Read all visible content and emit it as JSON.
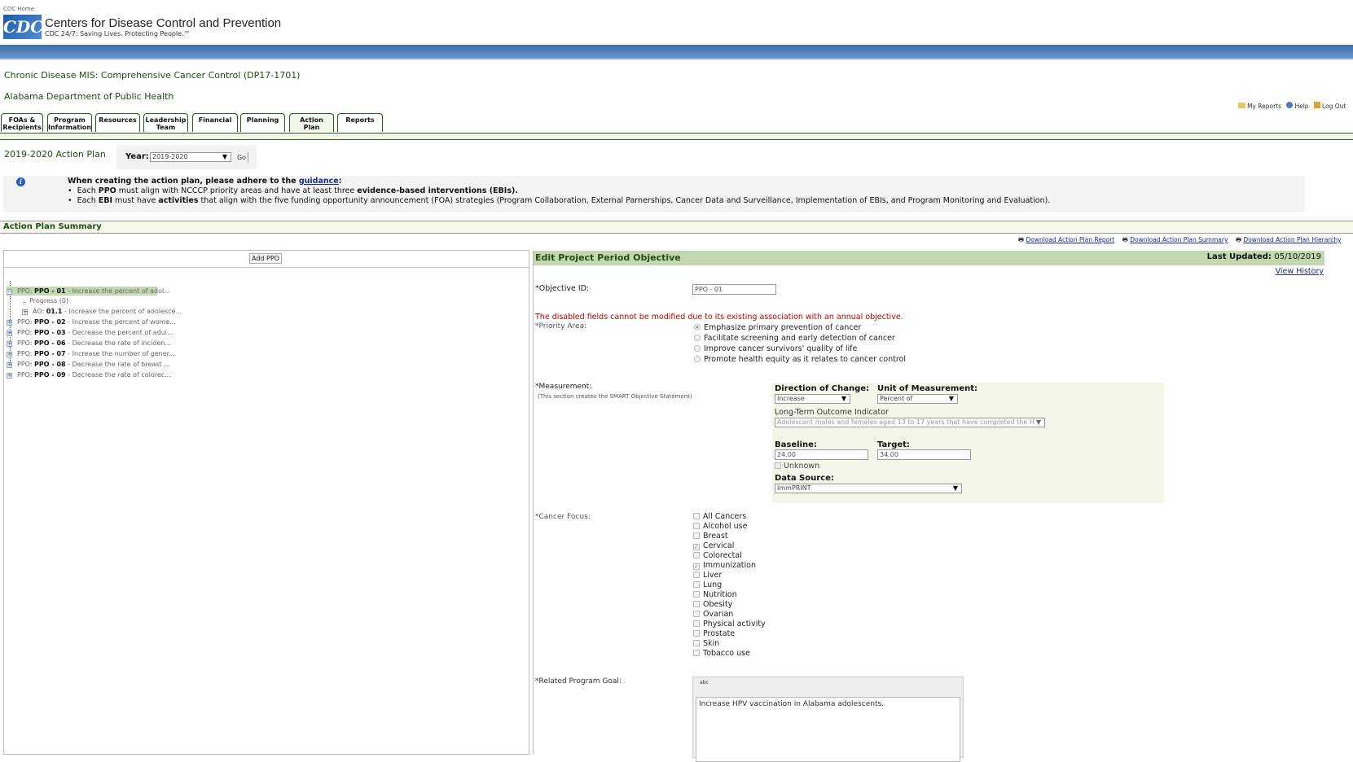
{
  "header": {
    "cdc_home": "CDC Home",
    "logo_text": "CDC",
    "org_name": "Centers for Disease Control and Prevention",
    "tagline": "CDC 24/7: Saving Lives. Protecting People.™"
  },
  "app": {
    "title": "Chronic Disease MIS: Comprehensive Cancer Control (DP17-1701)",
    "grantee": "Alabama Department of Public Health"
  },
  "utility_links": [
    {
      "label": "My Reports",
      "icon": "folder-icon"
    },
    {
      "label": "Help",
      "icon": "help-icon"
    },
    {
      "label": "Log Out",
      "icon": "lock-icon"
    }
  ],
  "tabs": [
    {
      "line1": "FOAs &",
      "line2": "Recipients"
    },
    {
      "line1": "Program",
      "line2": "Information"
    },
    {
      "line1": "Resources",
      "line2": ""
    },
    {
      "line1": "Leadership",
      "line2": "Team"
    },
    {
      "line1": "Financial",
      "line2": ""
    },
    {
      "line1": "Planning",
      "line2": ""
    },
    {
      "line1": "Action",
      "line2": "Plan",
      "active": true
    },
    {
      "line1": "Reports",
      "line2": ""
    }
  ],
  "page": {
    "title": "2019-2020 Action Plan",
    "year_label": "Year:",
    "year_value": "2019-2020",
    "go": "Go"
  },
  "info": {
    "intro": "When creating the action plan, please adhere to the ",
    "link": "guidance",
    "colon": ":",
    "b1_pre": "Each ",
    "b1_b1": "PPO",
    "b1_mid": " must align with NCCCP priority areas and have at least three ",
    "b1_b2": "evidence-based interventions (EBIs).",
    "b2_pre": "Each ",
    "b2_b1": "EBI",
    "b2_mid": " must have ",
    "b2_b2": "activities",
    "b2_post": " that align with the five funding opportunity announcement (FOA) strategies (Program Collaboration, External Parnerships, Cancer Data and Surveillance, Implementation of EBIs, and Program Monitoring and Evaluation)."
  },
  "summary": {
    "title": "Action Plan Summary",
    "downloads": [
      "Download Action Plan Report",
      "Download Action Plan Summary",
      "Download Action Plan Hierarchy"
    ]
  },
  "tree": {
    "add": "Add PPO",
    "items": [
      {
        "prefix": "PPO: ",
        "id": "PPO - 01",
        "text": " - Increase the percent of adol...",
        "selected": true,
        "sign": "−"
      },
      {
        "prefix": "",
        "id": "",
        "text": "Progress (0)",
        "child": true,
        "sign": ""
      },
      {
        "prefix": "AO: ",
        "id": "01.1",
        "text": " - Increase the percent of adolesce...",
        "child": true,
        "sign": "+"
      },
      {
        "prefix": "PPO: ",
        "id": "PPO - 02",
        "text": " - Increase the percent of wome...",
        "sign": "+"
      },
      {
        "prefix": "PPO: ",
        "id": "PPO - 03",
        "text": " - Decrease the percent of adul...",
        "sign": "+"
      },
      {
        "prefix": "PPO: ",
        "id": "PPO - 06",
        "text": " - Decrease the rate of inciden...",
        "sign": "+"
      },
      {
        "prefix": "PPO: ",
        "id": "PPO - 07",
        "text": " - Increase the number of gener...",
        "sign": "+"
      },
      {
        "prefix": "PPO: ",
        "id": "PPO - 08",
        "text": " - Decrease the rate of breast ...",
        "sign": "+"
      },
      {
        "prefix": "PPO: ",
        "id": "PPO - 09",
        "text": " - Decrease the rate of colorec...",
        "sign": "+"
      }
    ]
  },
  "form": {
    "title": "Edit Project Period Objective",
    "last_updated_label": "Last Updated:",
    "last_updated": "05/10/2019",
    "view_history": "View History",
    "objective_id_label": "Objective ID:",
    "objective_id": "PPO - 01",
    "disabled_note": "The disabled fields cannot be modified due to its existing association with an annual objective.",
    "priority_label": "Priority Area:",
    "priority_options": [
      "Emphasize primary prevention of cancer",
      "Facilitate screening and early detection of cancer",
      "Improve cancer survivors' quality of life",
      "Promote health equity as it relates to cancer control"
    ],
    "priority_selected": 0,
    "measurement_label": "Measurement:",
    "measurement_note": "(This section creates the SMART Objective Statement)",
    "direction_label": "Direction of Change:",
    "direction": "Increase",
    "unit_label": "Unit of Measurement:",
    "unit": "Percent of",
    "indicator_label": "Long-Term Outcome Indicator",
    "indicator": "Adolescent males and females aged 13 to 17 years that have completed the H",
    "baseline_label": "Baseline:",
    "baseline": "24.00",
    "target_label": "Target:",
    "target": "34.00",
    "unknown_label": "Unknown",
    "source_label": "Data Source:",
    "source": "ImmPRINT",
    "focus_label": "Cancer Focus:",
    "focus_options": [
      {
        "label": "All Cancers",
        "checked": false
      },
      {
        "label": "Alcohol use",
        "checked": false
      },
      {
        "label": "Breast",
        "checked": false
      },
      {
        "label": "Cervical",
        "checked": true
      },
      {
        "label": "Colorectal",
        "checked": false
      },
      {
        "label": "Immunization",
        "checked": true
      },
      {
        "label": "Liver",
        "checked": false
      },
      {
        "label": "Lung",
        "checked": false
      },
      {
        "label": "Nutrition",
        "checked": false
      },
      {
        "label": "Obesity",
        "checked": false
      },
      {
        "label": "Ovarian",
        "checked": false
      },
      {
        "label": "Physical activity",
        "checked": false
      },
      {
        "label": "Prostate",
        "checked": false
      },
      {
        "label": "Skin",
        "checked": false
      },
      {
        "label": "Tobacco use",
        "checked": false
      }
    ],
    "goal_label": "Related Program Goal:",
    "spell_icon": "abc",
    "goal": "Increase HPV vaccination in Alabama adolescents."
  },
  "colors": {
    "brand_blue": "#2f66b0",
    "green_text": "#1f4f0f",
    "header_green": "#c3d7b0",
    "panel_bg": "#f3f7e9",
    "error": "#c00000"
  }
}
